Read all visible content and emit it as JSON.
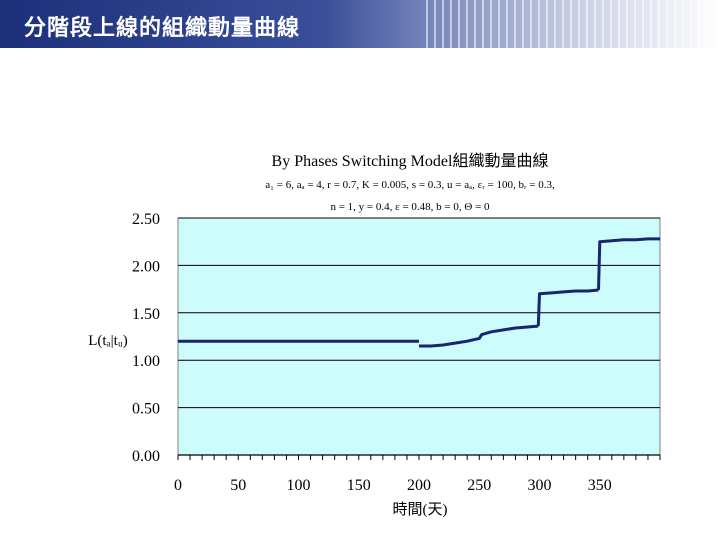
{
  "slide": {
    "title": "分階段上線的組織動量曲線"
  },
  "chart_data": {
    "type": "line",
    "title": "By Phases Switching Model組織動量曲線",
    "subtitle_lines": [
      "a₁ = 6, aₐ = 4, r = 0.7, K = 0.005, s = 0.3, u = aₐ, εᵣ = 100, bᵣ = 0.3,",
      "n = 1, y = 0.4, ε = 0.48, b = 0, Θ = 0"
    ],
    "xlabel": "時間(天)",
    "ylabel": "L(tₐ|tᵤ)",
    "xlim": [
      0,
      400
    ],
    "ylim": [
      0,
      2.5
    ],
    "x_ticks": [
      0,
      50,
      100,
      150,
      200,
      250,
      300,
      350
    ],
    "x_tick_labels": [
      "0",
      "50",
      "100",
      "150",
      "200",
      "250",
      "300",
      "350"
    ],
    "y_ticks": [
      0,
      0.5,
      1.0,
      1.5,
      2.0,
      2.5
    ],
    "y_tick_labels": [
      "0.00",
      "0.50",
      "1.00",
      "1.50",
      "2.00",
      "2.50"
    ],
    "grid": "horizontal",
    "background_color": "#ccfcfc",
    "line_color": "#1a2470",
    "series": [
      {
        "segments": [
          {
            "x": [
              0,
              200
            ],
            "y": [
              1.2,
              1.2
            ]
          },
          {
            "x": [
              200,
              210,
              220,
              230,
              240,
              250,
              252,
              260,
              270,
              280,
              290,
              299
            ],
            "y": [
              1.15,
              1.15,
              1.16,
              1.18,
              1.2,
              1.23,
              1.27,
              1.3,
              1.32,
              1.34,
              1.35,
              1.36
            ]
          },
          {
            "x": [
              299,
              300,
              310,
              320,
              330,
              340,
              349
            ],
            "y": [
              1.36,
              1.7,
              1.71,
              1.72,
              1.73,
              1.73,
              1.74
            ]
          },
          {
            "x": [
              349,
              350,
              360,
              370,
              380,
              390,
              400
            ],
            "y": [
              1.74,
              2.25,
              2.26,
              2.27,
              2.27,
              2.28,
              2.28
            ]
          }
        ]
      }
    ]
  }
}
